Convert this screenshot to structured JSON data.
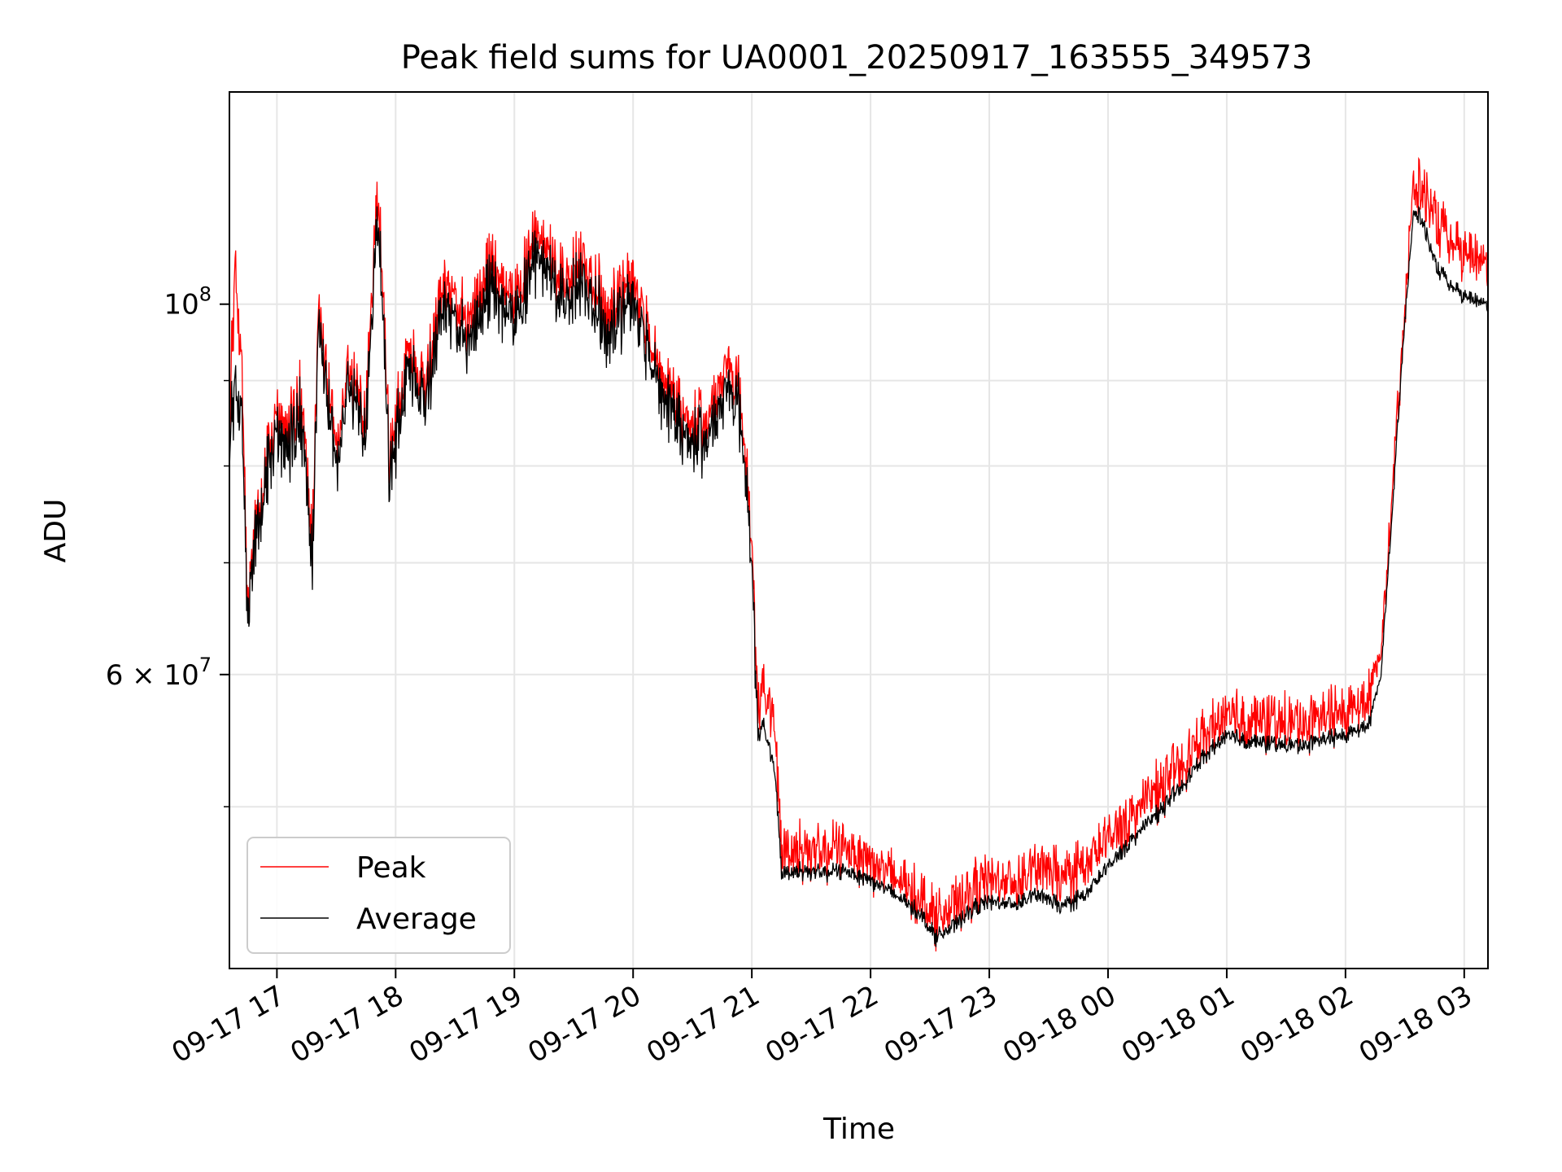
{
  "chart_data": {
    "type": "line",
    "title": "Peak field sums for UA0001_20250917_163555_349573",
    "xlabel": "Time",
    "ylabel": "ADU",
    "yscale": "log",
    "ylim": [
      40000000,
      134000000
    ],
    "xlim_hours_since_0917_00": [
      16.6,
      27.2
    ],
    "grid": true,
    "legend_position": "lower-left",
    "x_ticks": [
      {
        "t": 17,
        "label": "09-17 17"
      },
      {
        "t": 18,
        "label": "09-17 18"
      },
      {
        "t": 19,
        "label": "09-17 19"
      },
      {
        "t": 20,
        "label": "09-17 20"
      },
      {
        "t": 21,
        "label": "09-17 21"
      },
      {
        "t": 22,
        "label": "09-17 22"
      },
      {
        "t": 23,
        "label": "09-17 23"
      },
      {
        "t": 24,
        "label": "09-18 00"
      },
      {
        "t": 25,
        "label": "09-18 01"
      },
      {
        "t": 26,
        "label": "09-18 02"
      },
      {
        "t": 27,
        "label": "09-18 03"
      }
    ],
    "y_major_ticks": [
      {
        "value": 60000000,
        "base": "6 × 10",
        "exp": "7"
      },
      {
        "value": 100000000,
        "base": "10",
        "exp": "8"
      }
    ],
    "y_minor_ticks": [
      50000000,
      70000000,
      80000000,
      90000000
    ],
    "series": [
      {
        "name": "Peak",
        "color": "#ff0000",
        "noise": 0.05,
        "points": [
          [
            16.6,
            84000000
          ],
          [
            16.65,
            106000000
          ],
          [
            16.7,
            92000000
          ],
          [
            16.75,
            67000000
          ],
          [
            16.8,
            71000000
          ],
          [
            16.9,
            79000000
          ],
          [
            17.0,
            85000000
          ],
          [
            17.1,
            84000000
          ],
          [
            17.2,
            88000000
          ],
          [
            17.3,
            72000000
          ],
          [
            17.35,
            98000000
          ],
          [
            17.5,
            82000000
          ],
          [
            17.6,
            91000000
          ],
          [
            17.75,
            86000000
          ],
          [
            17.85,
            118000000
          ],
          [
            17.95,
            80000000
          ],
          [
            18.1,
            94000000
          ],
          [
            18.25,
            90000000
          ],
          [
            18.4,
            103000000
          ],
          [
            18.6,
            98000000
          ],
          [
            18.8,
            105000000
          ],
          [
            19.0,
            101000000
          ],
          [
            19.2,
            110000000
          ],
          [
            19.4,
            104000000
          ],
          [
            19.6,
            106000000
          ],
          [
            19.8,
            99000000
          ],
          [
            20.0,
            104000000
          ],
          [
            20.2,
            92000000
          ],
          [
            20.4,
            86000000
          ],
          [
            20.6,
            84000000
          ],
          [
            20.8,
            93000000
          ],
          [
            20.9,
            88000000
          ],
          [
            21.0,
            73000000
          ],
          [
            21.05,
            57000000
          ],
          [
            21.1,
            59000000
          ],
          [
            21.2,
            55000000
          ],
          [
            21.25,
            47000000
          ],
          [
            21.4,
            47200000
          ],
          [
            21.6,
            46800000
          ],
          [
            21.8,
            47400000
          ],
          [
            22.0,
            46400000
          ],
          [
            22.2,
            45300000
          ],
          [
            22.4,
            44300000
          ],
          [
            22.55,
            43000000
          ],
          [
            22.7,
            43500000
          ],
          [
            22.85,
            44500000
          ],
          [
            23.0,
            45300000
          ],
          [
            23.2,
            45000000
          ],
          [
            23.4,
            46000000
          ],
          [
            23.6,
            45400000
          ],
          [
            23.8,
            46000000
          ],
          [
            24.0,
            47800000
          ],
          [
            24.2,
            49500000
          ],
          [
            24.4,
            51000000
          ],
          [
            24.6,
            52800000
          ],
          [
            24.8,
            55000000
          ],
          [
            25.0,
            56800000
          ],
          [
            25.2,
            56300000
          ],
          [
            25.4,
            56200000
          ],
          [
            25.6,
            56100000
          ],
          [
            25.8,
            56500000
          ],
          [
            26.0,
            57000000
          ],
          [
            26.2,
            58300000
          ],
          [
            26.3,
            62000000
          ],
          [
            26.4,
            78000000
          ],
          [
            26.5,
            100000000
          ],
          [
            26.58,
            118000000
          ],
          [
            26.65,
            117000000
          ],
          [
            26.75,
            113000000
          ],
          [
            26.85,
            109000000
          ],
          [
            27.0,
            107000000
          ],
          [
            27.2,
            106000000
          ]
        ]
      },
      {
        "name": "Average",
        "color": "#000000",
        "noise": 0.015,
        "points": [
          [
            16.6,
            82000000
          ],
          [
            16.65,
            90000000
          ],
          [
            16.7,
            86000000
          ],
          [
            16.75,
            66000000
          ],
          [
            16.8,
            70000000
          ],
          [
            16.9,
            78000000
          ],
          [
            17.0,
            83000000
          ],
          [
            17.1,
            82000000
          ],
          [
            17.2,
            86000000
          ],
          [
            17.3,
            70000000
          ],
          [
            17.35,
            96000000
          ],
          [
            17.5,
            80000000
          ],
          [
            17.6,
            89000000
          ],
          [
            17.75,
            84000000
          ],
          [
            17.85,
            114000000
          ],
          [
            17.95,
            78000000
          ],
          [
            18.1,
            92000000
          ],
          [
            18.25,
            88000000
          ],
          [
            18.4,
            100000000
          ],
          [
            18.6,
            95000000
          ],
          [
            18.8,
            102000000
          ],
          [
            19.0,
            98000000
          ],
          [
            19.2,
            107000000
          ],
          [
            19.4,
            101000000
          ],
          [
            19.6,
            103000000
          ],
          [
            19.8,
            96000000
          ],
          [
            20.0,
            101000000
          ],
          [
            20.2,
            90000000
          ],
          [
            20.4,
            84000000
          ],
          [
            20.6,
            82000000
          ],
          [
            20.8,
            90000000
          ],
          [
            20.9,
            86000000
          ],
          [
            21.0,
            71000000
          ],
          [
            21.05,
            55000000
          ],
          [
            21.1,
            56000000
          ],
          [
            21.2,
            52000000
          ],
          [
            21.25,
            45600000
          ],
          [
            21.4,
            45800000
          ],
          [
            21.6,
            45600000
          ],
          [
            21.8,
            45800000
          ],
          [
            22.0,
            45200000
          ],
          [
            22.2,
            44300000
          ],
          [
            22.4,
            43300000
          ],
          [
            22.55,
            41800000
          ],
          [
            22.7,
            42400000
          ],
          [
            22.85,
            43400000
          ],
          [
            23.0,
            43900000
          ],
          [
            23.2,
            43700000
          ],
          [
            23.4,
            44300000
          ],
          [
            23.6,
            43600000
          ],
          [
            23.8,
            44200000
          ],
          [
            24.0,
            46000000
          ],
          [
            24.2,
            47800000
          ],
          [
            24.4,
            49400000
          ],
          [
            24.6,
            51200000
          ],
          [
            24.8,
            53500000
          ],
          [
            25.0,
            55200000
          ],
          [
            25.2,
            54700000
          ],
          [
            25.4,
            54500000
          ],
          [
            25.6,
            54400000
          ],
          [
            25.8,
            54800000
          ],
          [
            26.0,
            55200000
          ],
          [
            26.2,
            56100000
          ],
          [
            26.3,
            60000000
          ],
          [
            26.4,
            76000000
          ],
          [
            26.5,
            98000000
          ],
          [
            26.58,
            114000000
          ],
          [
            26.65,
            112000000
          ],
          [
            26.75,
            106000000
          ],
          [
            26.85,
            103000000
          ],
          [
            27.0,
            101000000
          ],
          [
            27.2,
            100000000
          ]
        ]
      }
    ]
  }
}
